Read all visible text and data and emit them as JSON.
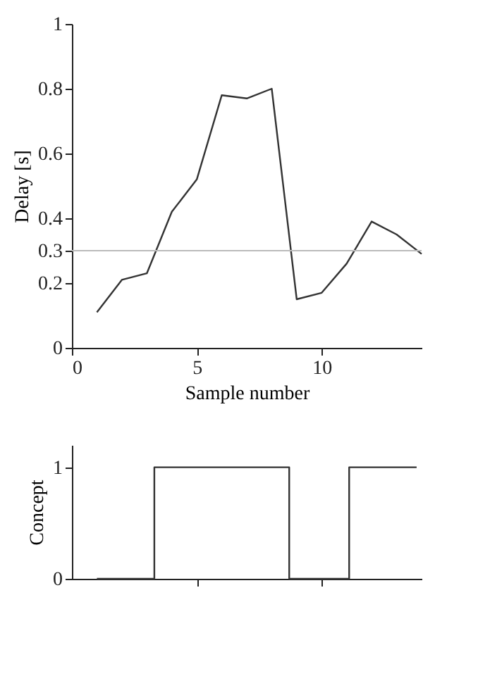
{
  "chart_data": [
    {
      "type": "line",
      "xlabel": "Sample number",
      "ylabel": "Delay [s]",
      "x": [
        1,
        2,
        3,
        4,
        5,
        6,
        7,
        8,
        9,
        10,
        11,
        12,
        13,
        14
      ],
      "series": [
        {
          "color": "#333333",
          "values": [
            0.11,
            0.21,
            0.23,
            0.42,
            0.52,
            0.78,
            0.77,
            0.8,
            0.15,
            0.17,
            0.26,
            0.39,
            0.35,
            0.29
          ]
        }
      ],
      "xlim": [
        0,
        14
      ],
      "xticks": [
        0,
        5,
        10
      ],
      "ylim": [
        0,
        1
      ],
      "yticks": [
        0,
        0.2,
        0.3,
        0.4,
        0.6,
        0.8,
        1
      ],
      "ref_lines": [
        {
          "axis": "y",
          "value": 0.3,
          "color": "#bbbbbb"
        }
      ],
      "grid": false
    },
    {
      "type": "step",
      "ylabel": "Concept",
      "x": [
        1,
        3.3,
        8.7,
        11.1,
        13.8
      ],
      "series": [
        {
          "color": "#333333",
          "values": [
            0,
            1,
            0,
            1,
            1
          ]
        }
      ],
      "xlim": [
        0,
        14
      ],
      "xticks": [
        {
          "value": 5,
          "label": null
        },
        {
          "value": 10,
          "label": null
        }
      ],
      "ylim": [
        0,
        1.2
      ],
      "yticks": [
        0,
        1
      ],
      "tick_labels": "y",
      "grid": false
    }
  ]
}
